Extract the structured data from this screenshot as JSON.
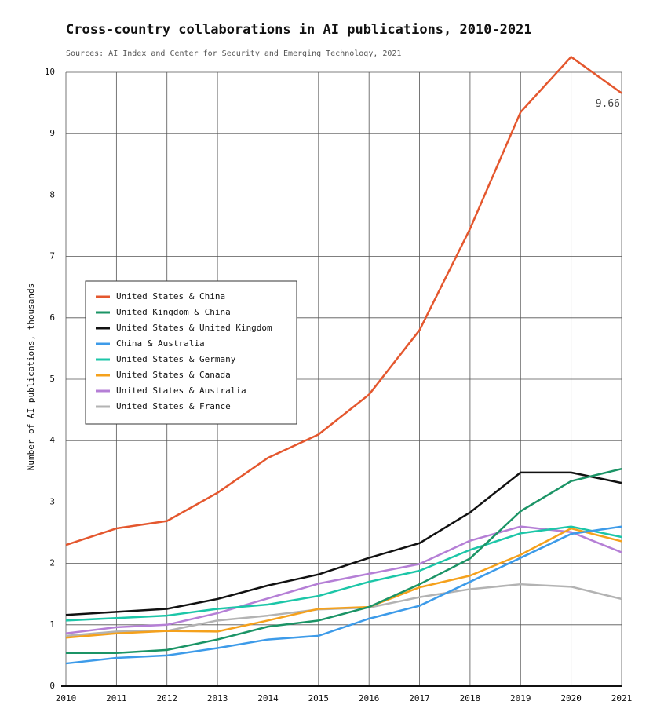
{
  "chart_data": {
    "type": "line",
    "title": "Cross-country collaborations in AI publications, 2010-2021",
    "subtitle": "Sources: AI Index and Center for Security and Emerging Technology, 2021",
    "y_label": "Number of AI publications, thousands",
    "x": [
      2010,
      2011,
      2012,
      2013,
      2014,
      2015,
      2016,
      2017,
      2018,
      2019,
      2020,
      2021
    ],
    "xlim": [
      2010,
      2021
    ],
    "xticks": [
      2010,
      2011,
      2012,
      2013,
      2014,
      2015,
      2016,
      2017,
      2018,
      2019,
      2020,
      2021
    ],
    "ylim": [
      0,
      10
    ],
    "yticks": [
      0,
      1,
      2,
      3,
      4,
      5,
      6,
      7,
      8,
      9,
      10
    ],
    "grid": true,
    "series": [
      {
        "name": "United States & China",
        "color": "#e4572e",
        "values": [
          2.3,
          2.57,
          2.69,
          3.15,
          3.72,
          4.1,
          4.75,
          5.8,
          7.45,
          9.35,
          10.25,
          9.66
        ]
      },
      {
        "name": "United Kingdom & China",
        "color": "#1b9466",
        "values": [
          0.54,
          0.54,
          0.59,
          0.76,
          0.97,
          1.07,
          1.29,
          1.66,
          2.08,
          2.85,
          3.34,
          3.54
        ]
      },
      {
        "name": "United States & United Kingdom",
        "color": "#111111",
        "values": [
          1.16,
          1.21,
          1.26,
          1.42,
          1.64,
          1.82,
          2.09,
          2.33,
          2.83,
          3.48,
          3.48,
          3.31
        ]
      },
      {
        "name": "China & Australia",
        "color": "#3d9be9",
        "values": [
          0.37,
          0.46,
          0.5,
          0.62,
          0.76,
          0.82,
          1.1,
          1.31,
          1.7,
          2.09,
          2.48,
          2.6
        ]
      },
      {
        "name": "United States & Germany",
        "color": "#1cc6a8",
        "values": [
          1.07,
          1.11,
          1.15,
          1.26,
          1.33,
          1.47,
          1.7,
          1.88,
          2.22,
          2.49,
          2.6,
          2.43
        ]
      },
      {
        "name": "United States & Canada",
        "color": "#f5a11c",
        "values": [
          0.79,
          0.86,
          0.9,
          0.89,
          1.07,
          1.26,
          1.29,
          1.61,
          1.8,
          2.14,
          2.57,
          2.36
        ]
      },
      {
        "name": "United States & Australia",
        "color": "#b57fd6",
        "values": [
          0.86,
          0.96,
          1.0,
          1.19,
          1.43,
          1.67,
          1.83,
          1.99,
          2.37,
          2.6,
          2.51,
          2.18
        ]
      },
      {
        "name": "United States & France",
        "color": "#b3b3b3",
        "values": [
          0.82,
          0.89,
          0.9,
          1.07,
          1.15,
          1.25,
          1.28,
          1.45,
          1.58,
          1.66,
          1.62,
          1.42
        ]
      }
    ]
  }
}
